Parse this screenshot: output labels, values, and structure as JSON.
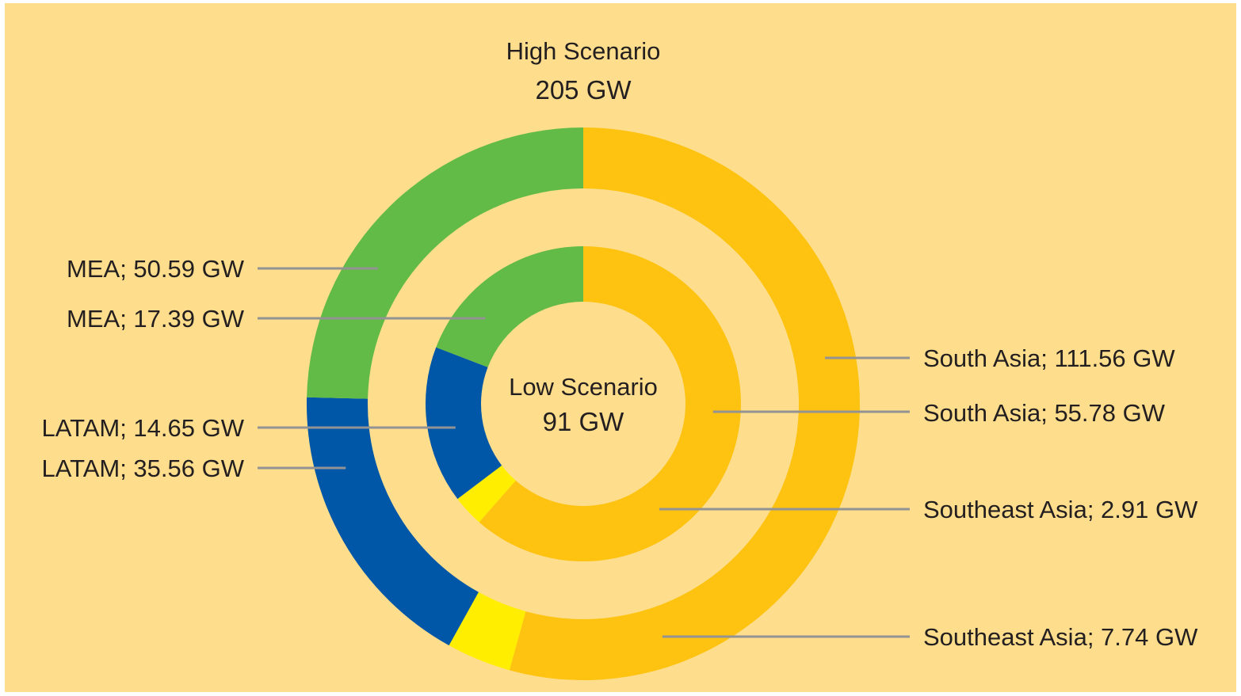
{
  "chart_data": {
    "type": "pie",
    "subtype": "nested-donut",
    "background_color": "#fede8c",
    "outer_ring": {
      "title": "High Scenario",
      "total_label": "205 GW",
      "slices": [
        {
          "name": "South Asia",
          "value": 111.56,
          "label": "South Asia; 111.56 GW",
          "color": "#fec211"
        },
        {
          "name": "Southeast Asia",
          "value": 7.74,
          "label": "Southeast Asia; 7.74 GW",
          "color": "#ffee00"
        },
        {
          "name": "LATAM",
          "value": 35.56,
          "label": "LATAM; 35.56 GW",
          "color": "#0057a8"
        },
        {
          "name": "MEA",
          "value": 50.59,
          "label": "MEA; 50.59 GW",
          "color": "#62bb46"
        }
      ]
    },
    "inner_ring": {
      "title": "Low Scenario",
      "total_label": "91 GW",
      "slices": [
        {
          "name": "South Asia",
          "value": 55.78,
          "label": "South Asia; 55.78 GW",
          "color": "#fec211"
        },
        {
          "name": "Southeast Asia",
          "value": 2.91,
          "label": "Southeast Asia; 2.91 GW",
          "color": "#ffee00"
        },
        {
          "name": "LATAM",
          "value": 14.65,
          "label": "LATAM; 14.65 GW",
          "color": "#0057a8"
        },
        {
          "name": "MEA",
          "value": 17.39,
          "label": "MEA; 17.39 GW",
          "color": "#62bb46"
        }
      ]
    },
    "leader_line_color": "#939393"
  }
}
